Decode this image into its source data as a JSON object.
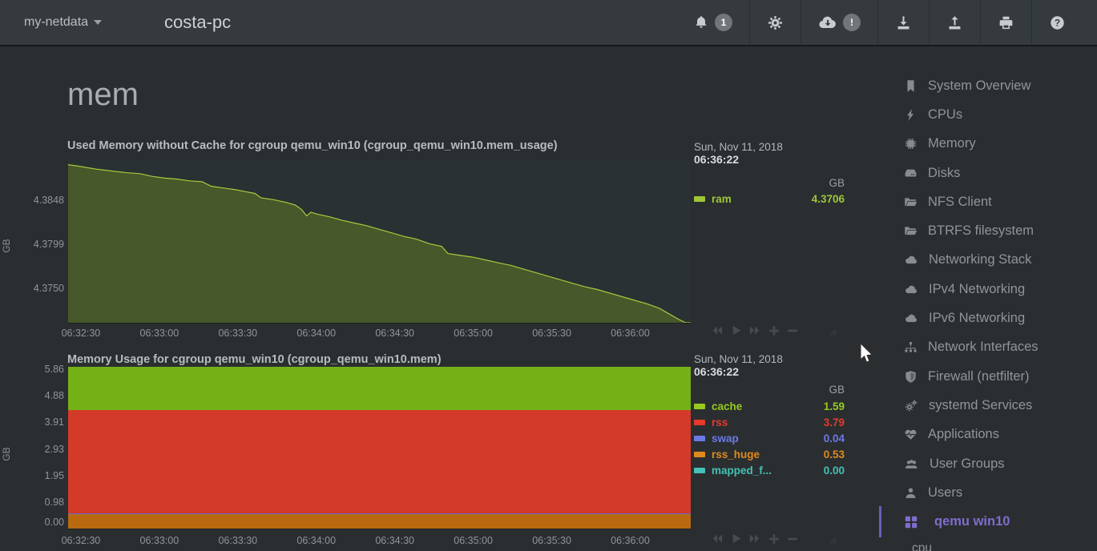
{
  "header": {
    "brand": "my-netdata",
    "hostname": "costa-pc",
    "alarms_badge": "1",
    "cloud_badge": "!"
  },
  "main": {
    "section_title": "mem"
  },
  "chart1": {
    "title": "Used Memory without Cache for cgroup qemu_win10 (cgroup_qemu_win10.mem_usage)",
    "date": "Sun, Nov 11, 2018",
    "time": "06:36:22",
    "unit": "GB",
    "ylabel": "GB",
    "legend": [
      {
        "label": "ram",
        "value": "4.3706",
        "color": "#9fc637"
      }
    ],
    "y_ticks": [
      "4.3848",
      "4.3799",
      "4.3750"
    ],
    "x_ticks": [
      "06:32:30",
      "06:33:00",
      "06:33:30",
      "06:34:00",
      "06:34:30",
      "06:35:00",
      "06:35:30",
      "06:36:00"
    ]
  },
  "chart2": {
    "title": "Memory Usage for cgroup qemu_win10 (cgroup_qemu_win10.mem)",
    "date": "Sun, Nov 11, 2018",
    "time": "06:36:22",
    "unit": "GB",
    "ylabel": "GB",
    "legend": [
      {
        "label": "cache",
        "value": "1.59",
        "color": "#97c91f"
      },
      {
        "label": "rss",
        "value": "3.79",
        "color": "#e6392b"
      },
      {
        "label": "swap",
        "value": "0.04",
        "color": "#6b79e6"
      },
      {
        "label": "rss_huge",
        "value": "0.53",
        "color": "#df8a1c"
      },
      {
        "label": "mapped_f...",
        "value": "0.00",
        "color": "#45c1b5"
      }
    ],
    "y_ticks": [
      "5.86",
      "4.88",
      "3.91",
      "2.93",
      "1.95",
      "0.98",
      "0.00"
    ],
    "x_ticks": [
      "06:32:30",
      "06:33:00",
      "06:33:30",
      "06:34:00",
      "06:34:30",
      "06:35:00",
      "06:35:30",
      "06:36:00"
    ]
  },
  "chart_data": [
    {
      "type": "area",
      "title": "Used Memory without Cache for cgroup qemu_win10 (cgroup_qemu_win10.mem_usage)",
      "ylabel": "GB",
      "legend_position": "right",
      "x_min": "06:32:24",
      "x_max": "06:36:22",
      "ylim": [
        4.3712,
        4.3893
      ],
      "x_ticks": [
        "06:32:30",
        "06:33:00",
        "06:33:30",
        "06:34:00",
        "06:34:30",
        "06:35:00",
        "06:35:30",
        "06:36:00"
      ],
      "series": [
        {
          "name": "ram",
          "color": "#a9c93d",
          "fill": "#47582a",
          "points": [
            [
              0.0,
              4.3888
            ],
            [
              0.02,
              4.3886
            ],
            [
              0.045,
              4.3883
            ],
            [
              0.07,
              4.3881
            ],
            [
              0.095,
              4.3879
            ],
            [
              0.115,
              4.3878
            ],
            [
              0.135,
              4.3875
            ],
            [
              0.155,
              4.3873
            ],
            [
              0.175,
              4.3872
            ],
            [
              0.195,
              4.387
            ],
            [
              0.215,
              4.3869
            ],
            [
              0.23,
              4.3864
            ],
            [
              0.25,
              4.3862
            ],
            [
              0.27,
              4.386
            ],
            [
              0.285,
              4.3858
            ],
            [
              0.3,
              4.3856
            ],
            [
              0.31,
              4.3851
            ],
            [
              0.33,
              4.3849
            ],
            [
              0.35,
              4.3846
            ],
            [
              0.365,
              4.3843
            ],
            [
              0.375,
              4.3838
            ],
            [
              0.383,
              4.3831
            ],
            [
              0.39,
              4.3835
            ],
            [
              0.4,
              4.3833
            ],
            [
              0.42,
              4.383
            ],
            [
              0.44,
              4.3826
            ],
            [
              0.46,
              4.3823
            ],
            [
              0.48,
              4.382
            ],
            [
              0.5,
              4.3816
            ],
            [
              0.52,
              4.3812
            ],
            [
              0.54,
              4.3808
            ],
            [
              0.56,
              4.3805
            ],
            [
              0.58,
              4.38
            ],
            [
              0.6,
              4.3797
            ],
            [
              0.61,
              4.3789
            ],
            [
              0.63,
              4.3787
            ],
            [
              0.65,
              4.3785
            ],
            [
              0.67,
              4.3782
            ],
            [
              0.69,
              4.3779
            ],
            [
              0.71,
              4.3776
            ],
            [
              0.73,
              4.3772
            ],
            [
              0.75,
              4.3768
            ],
            [
              0.77,
              4.3764
            ],
            [
              0.79,
              4.376
            ],
            [
              0.81,
              4.3756
            ],
            [
              0.83,
              4.3752
            ],
            [
              0.85,
              4.3749
            ],
            [
              0.87,
              4.3745
            ],
            [
              0.89,
              4.3741
            ],
            [
              0.91,
              4.3737
            ],
            [
              0.93,
              4.3733
            ],
            [
              0.95,
              4.3728
            ],
            [
              0.965,
              4.3722
            ],
            [
              0.98,
              4.3716
            ],
            [
              0.992,
              4.3709
            ],
            [
              1.0,
              4.3706
            ]
          ]
        }
      ]
    },
    {
      "type": "area",
      "subtype": "stacked",
      "title": "Memory Usage for cgroup qemu_win10 (cgroup_qemu_win10.mem)",
      "ylabel": "GB",
      "legend_position": "right",
      "x_min": "06:32:24",
      "x_max": "06:36:22",
      "ylim": [
        0,
        5.95
      ],
      "x_ticks": [
        "06:32:30",
        "06:33:00",
        "06:33:30",
        "06:34:00",
        "06:34:30",
        "06:35:00",
        "06:35:30",
        "06:36:00"
      ],
      "stack_order_bottom_to_top": [
        "rss_huge",
        "swap",
        "rss",
        "cache"
      ],
      "series": [
        {
          "name": "cache",
          "value": 1.59,
          "color": "#74b117"
        },
        {
          "name": "rss",
          "value": 3.79,
          "color": "#d43a2a"
        },
        {
          "name": "swap",
          "value": 0.04,
          "color": "#5f6cd8"
        },
        {
          "name": "rss_huge",
          "value": 0.53,
          "color": "#b96a10"
        },
        {
          "name": "mapped_file",
          "value": 0.0,
          "color": "#45c1b5"
        }
      ]
    }
  ],
  "sidebar": {
    "items": [
      {
        "label": "System Overview",
        "icon": "bookmark"
      },
      {
        "label": "CPUs",
        "icon": "bolt"
      },
      {
        "label": "Memory",
        "icon": "microchip"
      },
      {
        "label": "Disks",
        "icon": "hdd"
      },
      {
        "label": "NFS Client",
        "icon": "folder-open"
      },
      {
        "label": "BTRFS filesystem",
        "icon": "folder-open"
      },
      {
        "label": "Networking Stack",
        "icon": "cloud"
      },
      {
        "label": "IPv4 Networking",
        "icon": "cloud"
      },
      {
        "label": "IPv6 Networking",
        "icon": "cloud"
      },
      {
        "label": "Network Interfaces",
        "icon": "sitemap"
      },
      {
        "label": "Firewall (netfilter)",
        "icon": "shield"
      },
      {
        "label": "systemd Services",
        "icon": "cogs"
      },
      {
        "label": "Applications",
        "icon": "heartbeat"
      },
      {
        "label": "User Groups",
        "icon": "users"
      },
      {
        "label": "Users",
        "icon": "user"
      },
      {
        "label": "qemu win10",
        "icon": "th-large",
        "active": true,
        "accent": "#7f6dcd"
      }
    ],
    "subitem": "cpu"
  }
}
